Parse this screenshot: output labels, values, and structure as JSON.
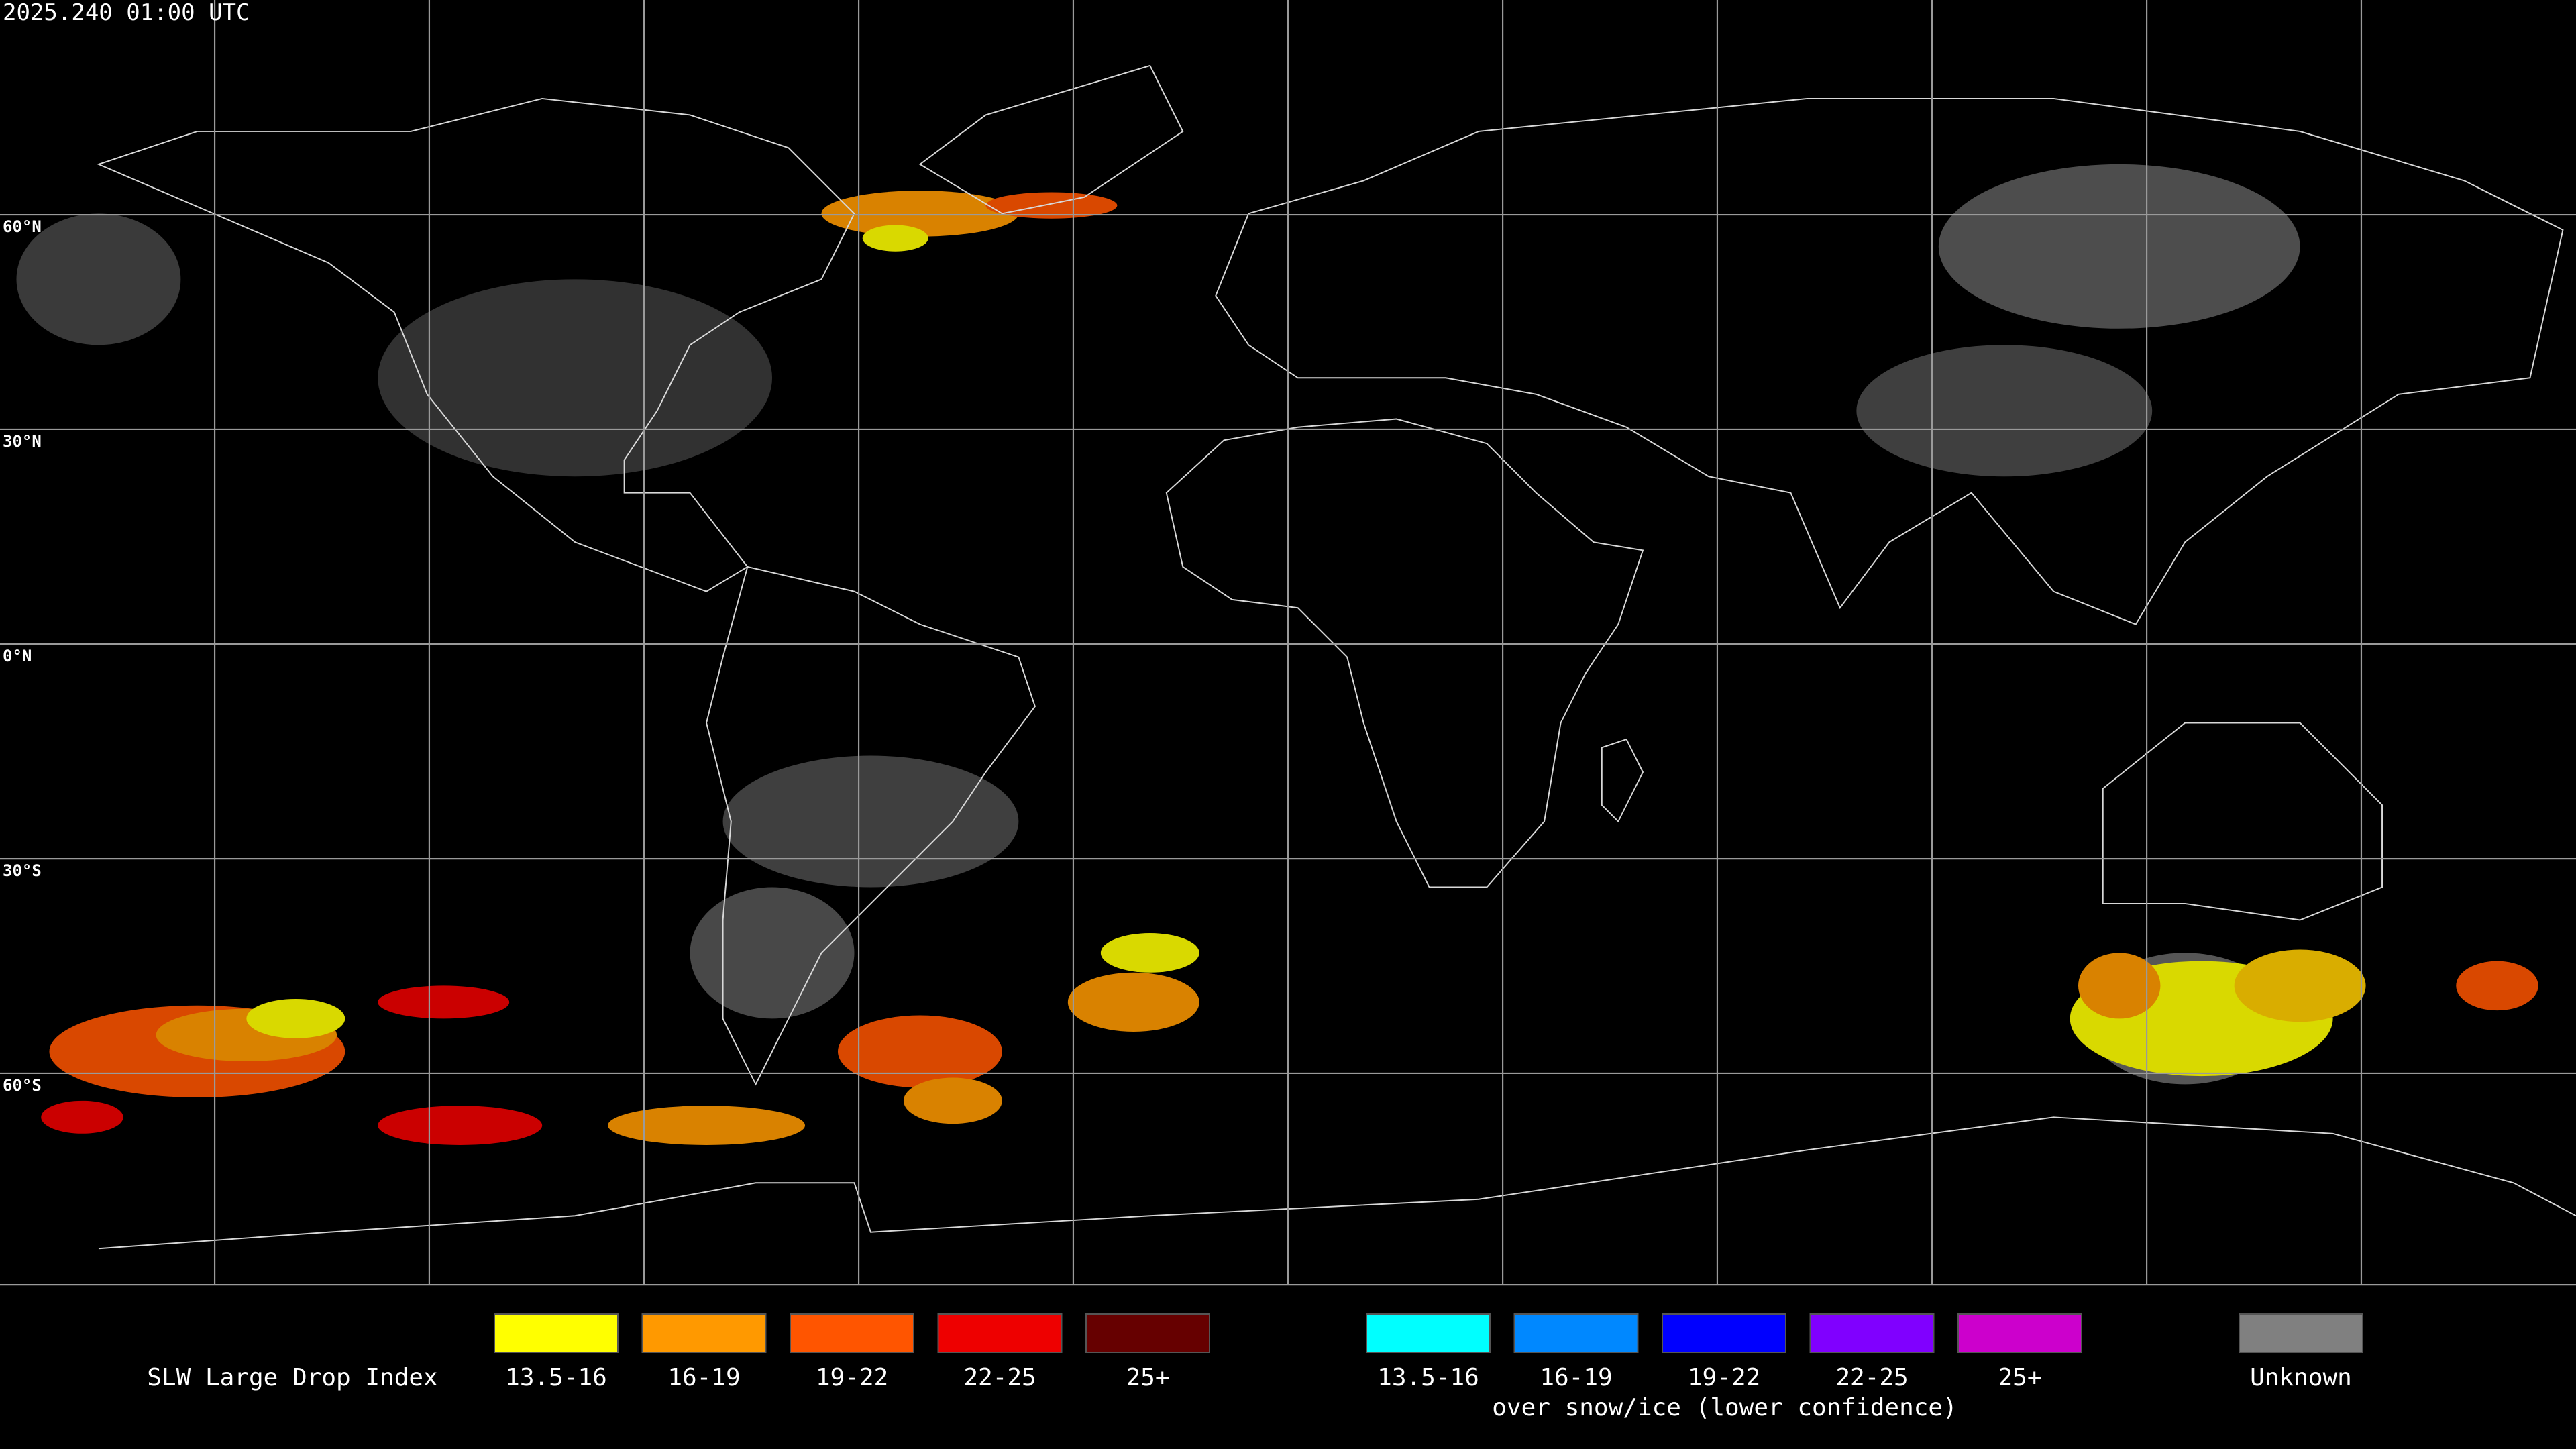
{
  "title": "2025.240 01:00 UTC",
  "lat_labels": [
    "60°N",
    "30°N",
    "0°N",
    "30°S",
    "60°S"
  ],
  "legend": {
    "label": "SLW Large Drop Index",
    "items": [
      {
        "label": "13.5-16",
        "color": "#ffff00"
      },
      {
        "label": "16-19",
        "color": "#ff9900"
      },
      {
        "label": "19-22",
        "color": "#ff5500"
      },
      {
        "label": "22-25",
        "color": "#ee0000"
      },
      {
        "label": "25+",
        "color": "#660000"
      }
    ],
    "snow_items": [
      {
        "label": "13.5-16",
        "color": "#00ffff"
      },
      {
        "label": "16-19",
        "color": "#0088ff"
      },
      {
        "label": "19-22",
        "color": "#0000ff"
      },
      {
        "label": "22-25",
        "color": "#8000ff"
      },
      {
        "label": "25+",
        "color": "#cc00cc"
      }
    ],
    "snow_note": "over snow/ice (lower confidence)",
    "unknown": {
      "label": "Unknown",
      "color": "#808080"
    }
  }
}
